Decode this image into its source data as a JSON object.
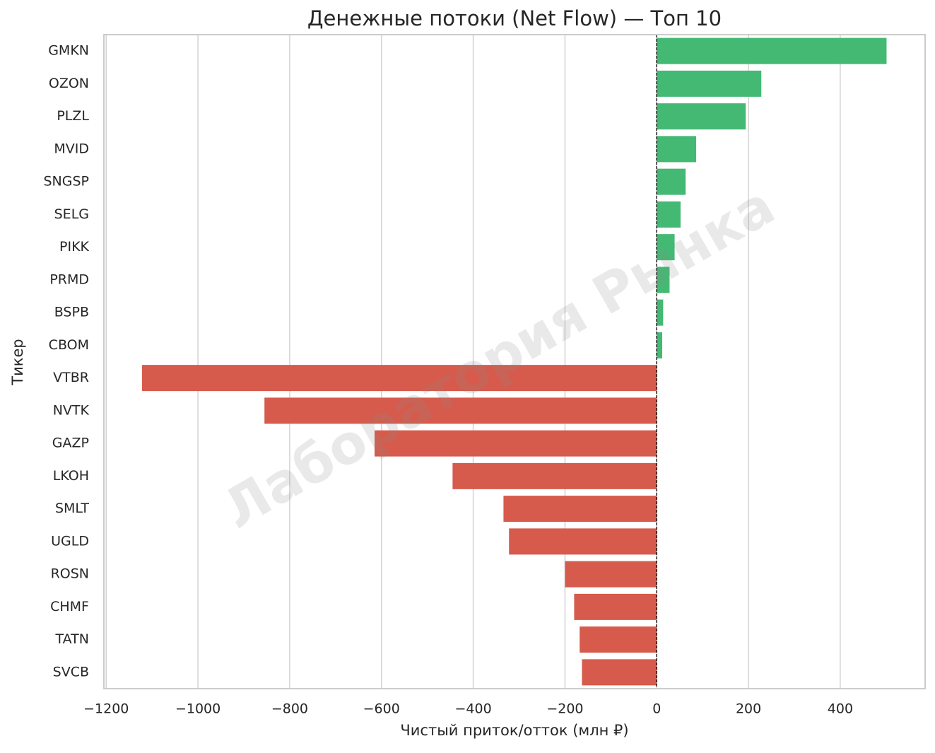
{
  "chart_data": {
    "type": "barh",
    "title": "Денежные потоки (Net Flow) — Топ 10",
    "xlabel": "Чистый приток/отток (млн ₽)",
    "ylabel": "Тикер",
    "watermark": "Лаборатория Рынка",
    "categories": [
      "GMKN",
      "OZON",
      "PLZL",
      "MVID",
      "SNGSP",
      "SELG",
      "PIKK",
      "PRMD",
      "BSPB",
      "CBOM",
      "VTBR",
      "NVTK",
      "GAZP",
      "LKOH",
      "SMLT",
      "UGLD",
      "ROSN",
      "CHMF",
      "TATN",
      "SVCB"
    ],
    "values": [
      501,
      228,
      194,
      86,
      63,
      52,
      39,
      28,
      14,
      12,
      -1122,
      -855,
      -615,
      -445,
      -334,
      -322,
      -200,
      -180,
      -168,
      -163
    ],
    "colors": [
      "#44b974",
      "#44b974",
      "#44b974",
      "#44b974",
      "#44b974",
      "#44b974",
      "#44b974",
      "#44b974",
      "#44b974",
      "#44b974",
      "#d65b4c",
      "#d65b4c",
      "#d65b4c",
      "#d65b4c",
      "#d65b4c",
      "#d65b4c",
      "#d65b4c",
      "#d65b4c",
      "#d65b4c",
      "#d65b4c"
    ],
    "xlim": [
      -1205,
      585
    ],
    "xticks": [
      {
        "value": -1200,
        "label": "−1200"
      },
      {
        "value": -1000,
        "label": "−1000"
      },
      {
        "value": -800,
        "label": "−800"
      },
      {
        "value": -600,
        "label": "−600"
      },
      {
        "value": -400,
        "label": "−400"
      },
      {
        "value": -200,
        "label": "−200"
      },
      0,
      200,
      400
    ],
    "grid": true,
    "zero_line": true
  }
}
